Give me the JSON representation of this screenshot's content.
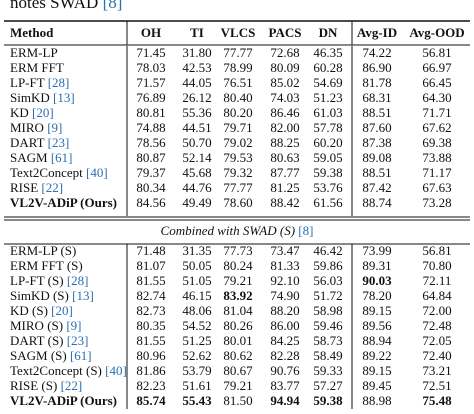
{
  "caption_fragment": {
    "text": "notes SWAD",
    "ref": "[8]"
  },
  "table": {
    "header": [
      "Method",
      "OH",
      "TI",
      "VLCS",
      "PACS",
      "DN",
      "Avg-ID",
      "Avg-OOD"
    ],
    "groups": [
      {
        "rows": [
          {
            "method": "ERM-LP",
            "values": [
              "71.45",
              "31.80",
              "77.77",
              "72.68",
              "46.35",
              "74.22",
              "56.81"
            ],
            "bold": []
          },
          {
            "method": "ERM FFT",
            "values": [
              "78.03",
              "42.53",
              "78.99",
              "80.09",
              "60.28",
              "86.90",
              "66.97"
            ],
            "bold": []
          },
          {
            "method": "LP-FT",
            "ref": "[28]",
            "values": [
              "71.57",
              "44.05",
              "76.51",
              "85.02",
              "54.69",
              "81.78",
              "66.45"
            ],
            "bold": []
          },
          {
            "method": "SimKD",
            "ref": "[13]",
            "values": [
              "76.89",
              "26.12",
              "80.40",
              "74.03",
              "51.23",
              "68.31",
              "64.30"
            ],
            "bold": []
          },
          {
            "method": "KD",
            "ref": "[20]",
            "values": [
              "80.81",
              "55.36",
              "80.20",
              "86.46",
              "61.03",
              "88.51",
              "71.71"
            ],
            "bold": []
          },
          {
            "method": "MIRO",
            "ref": "[9]",
            "values": [
              "74.88",
              "44.51",
              "79.71",
              "82.00",
              "57.78",
              "87.60",
              "67.62"
            ],
            "bold": []
          },
          {
            "method": "DART",
            "ref": "[23]",
            "values": [
              "78.56",
              "50.70",
              "79.02",
              "88.25",
              "60.20",
              "87.38",
              "69.38"
            ],
            "bold": []
          },
          {
            "method": "SAGM",
            "ref": "[61]",
            "values": [
              "80.87",
              "52.14",
              "79.53",
              "80.63",
              "59.05",
              "89.08",
              "73.88"
            ],
            "bold": []
          },
          {
            "method": "Text2Concept",
            "ref": "[40]",
            "values": [
              "79.37",
              "45.68",
              "79.32",
              "87.77",
              "59.38",
              "88.51",
              "71.17"
            ],
            "bold": []
          },
          {
            "method": "RISE",
            "ref": "[22]",
            "values": [
              "80.34",
              "44.76",
              "77.77",
              "81.25",
              "53.76",
              "87.42",
              "67.63"
            ],
            "bold": []
          },
          {
            "method": "VL2V-ADiP (Ours)",
            "values": [
              "84.56",
              "49.49",
              "78.60",
              "88.42",
              "61.56",
              "88.74",
              "73.28"
            ],
            "bold": [
              0
            ]
          }
        ]
      },
      {
        "label": {
          "text": "Combined with SWAD (S)",
          "ref": "[8]"
        },
        "rows": [
          {
            "method": "ERM-LP (S)",
            "values": [
              "71.48",
              "31.35",
              "77.73",
              "73.47",
              "46.42",
              "73.99",
              "56.81"
            ],
            "bold": []
          },
          {
            "method": "ERM FFT (S)",
            "values": [
              "81.07",
              "50.05",
              "80.24",
              "81.33",
              "59.86",
              "89.31",
              "70.80"
            ],
            "bold": []
          },
          {
            "method": "LP-FT (S)",
            "ref": "[28]",
            "values": [
              "81.55",
              "51.05",
              "79.21",
              "92.10",
              "56.03",
              "90.03",
              "72.11"
            ],
            "bold": [
              6
            ]
          },
          {
            "method": "SimKD (S)",
            "ref": "[13]",
            "values": [
              "82.74",
              "46.15",
              "83.92",
              "74.90",
              "51.72",
              "78.20",
              "64.84"
            ],
            "bold": [
              3
            ]
          },
          {
            "method": "KD (S)",
            "ref": "[20]",
            "values": [
              "82.73",
              "48.06",
              "81.04",
              "88.20",
              "58.98",
              "89.15",
              "72.00"
            ],
            "bold": []
          },
          {
            "method": "MIRO (S)",
            "ref": "[9]",
            "values": [
              "80.35",
              "54.52",
              "80.26",
              "86.00",
              "59.46",
              "89.56",
              "72.48"
            ],
            "bold": []
          },
          {
            "method": "DART (S)",
            "ref": "[23]",
            "values": [
              "81.55",
              "51.25",
              "80.01",
              "84.25",
              "58.73",
              "88.94",
              "72.05"
            ],
            "bold": []
          },
          {
            "method": "SAGM (S)",
            "ref": "[61]",
            "values": [
              "80.96",
              "52.62",
              "80.62",
              "82.28",
              "58.49",
              "89.22",
              "72.40"
            ],
            "bold": []
          },
          {
            "method": "Text2Concept (S)",
            "ref": "[40]",
            "values": [
              "81.86",
              "53.79",
              "80.67",
              "90.76",
              "59.33",
              "89.15",
              "73.21"
            ],
            "bold": []
          },
          {
            "method": "RISE (S)",
            "ref": "[22]",
            "values": [
              "82.23",
              "51.61",
              "79.21",
              "83.77",
              "57.27",
              "89.45",
              "72.51"
            ],
            "bold": []
          },
          {
            "method": "VL2V-ADiP (Ours)",
            "values": [
              "85.74",
              "55.43",
              "81.50",
              "94.94",
              "59.38",
              "88.98",
              "75.48"
            ],
            "bold": [
              0,
              1,
              2,
              4,
              5,
              7
            ]
          }
        ]
      }
    ]
  }
}
